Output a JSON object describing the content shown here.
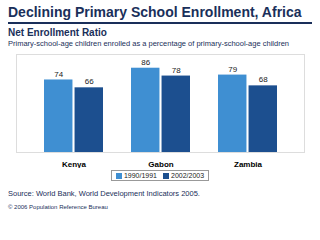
{
  "chart_data": {
    "type": "bar",
    "title": "Declining Primary School Enrollment, Africa",
    "subtitle": "Net Enrollment Ratio",
    "annotations": [
      "Primary-school-age children enrolled as a percentage of primary-school-age children",
      "Source: World Bank, World Development Indicators 2005.",
      "© 2006 Population Reference Bureau"
    ],
    "categories": [
      "Kenya",
      "Gabon",
      "Zambia"
    ],
    "series": [
      {
        "name": "1990/1991",
        "color": "#3f8fd2",
        "values": [
          74,
          86,
          79
        ]
      },
      {
        "name": "2002/2003",
        "color": "#1c4f8f",
        "values": [
          66,
          78,
          68
        ]
      }
    ],
    "ylim": [
      0,
      100
    ],
    "tick_labels": "x",
    "data_labels": true,
    "legend": "bottom",
    "grid": false
  }
}
